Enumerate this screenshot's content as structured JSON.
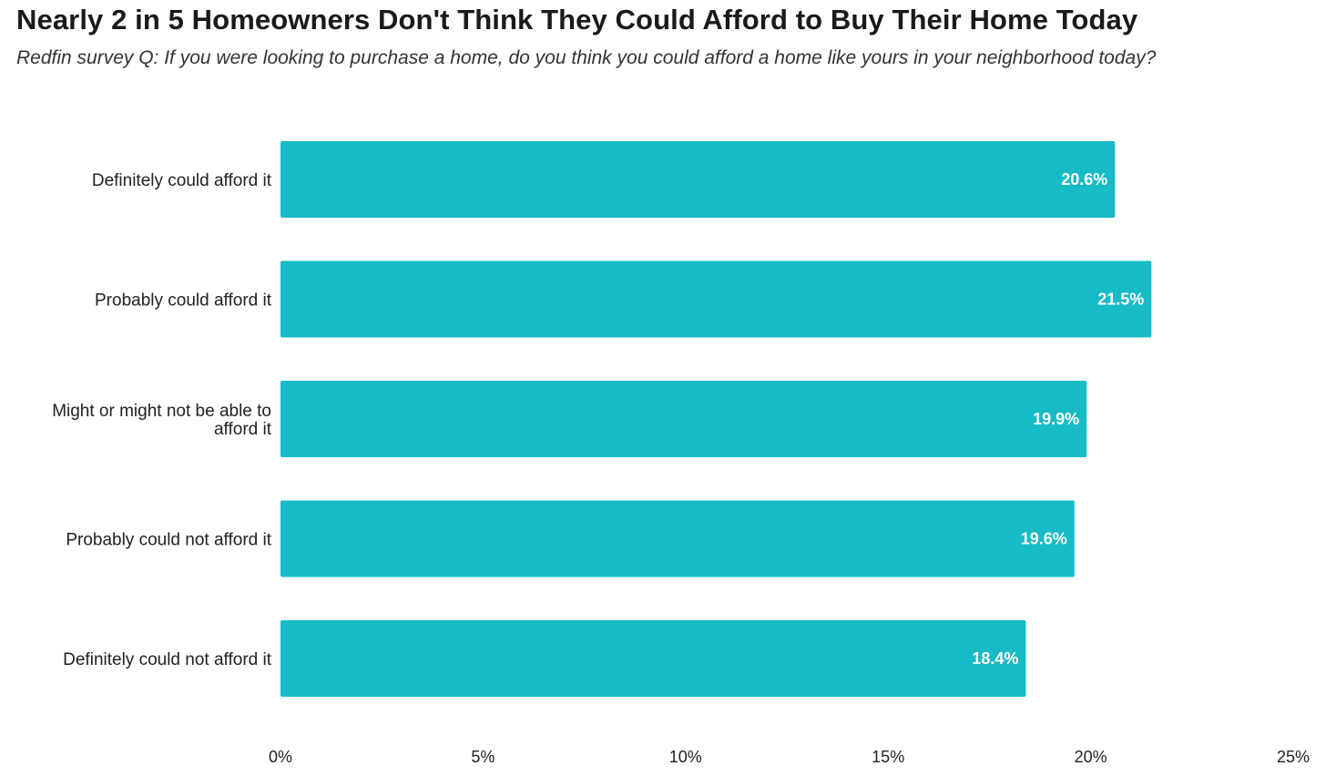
{
  "chart_data": {
    "type": "bar",
    "orientation": "horizontal",
    "title": "Nearly 2 in 5 Homeowners Don't Think They Could Afford to Buy Their Home Today",
    "subtitle": "Redfin survey Q: If you were looking to purchase a home, do you think you could afford a home like yours in your neighborhood today?",
    "categories": [
      [
        "Definitely could afford it"
      ],
      [
        "Probably could afford it"
      ],
      [
        "Might or might not be able to",
        "afford it"
      ],
      [
        "Probably could not afford it"
      ],
      [
        "Definitely could not afford it"
      ]
    ],
    "values": [
      20.6,
      21.5,
      19.9,
      19.6,
      18.4
    ],
    "value_labels": [
      "20.6%",
      "21.5%",
      "19.9%",
      "19.6%",
      "18.4%"
    ],
    "xlim": [
      0,
      25
    ],
    "x_ticks": [
      0,
      5,
      10,
      15,
      20,
      25
    ],
    "x_tick_labels": [
      "0%",
      "5%",
      "10%",
      "15%",
      "20%",
      "25%"
    ],
    "bar_color": "#17bbc5",
    "grid": false,
    "legend": "none"
  }
}
